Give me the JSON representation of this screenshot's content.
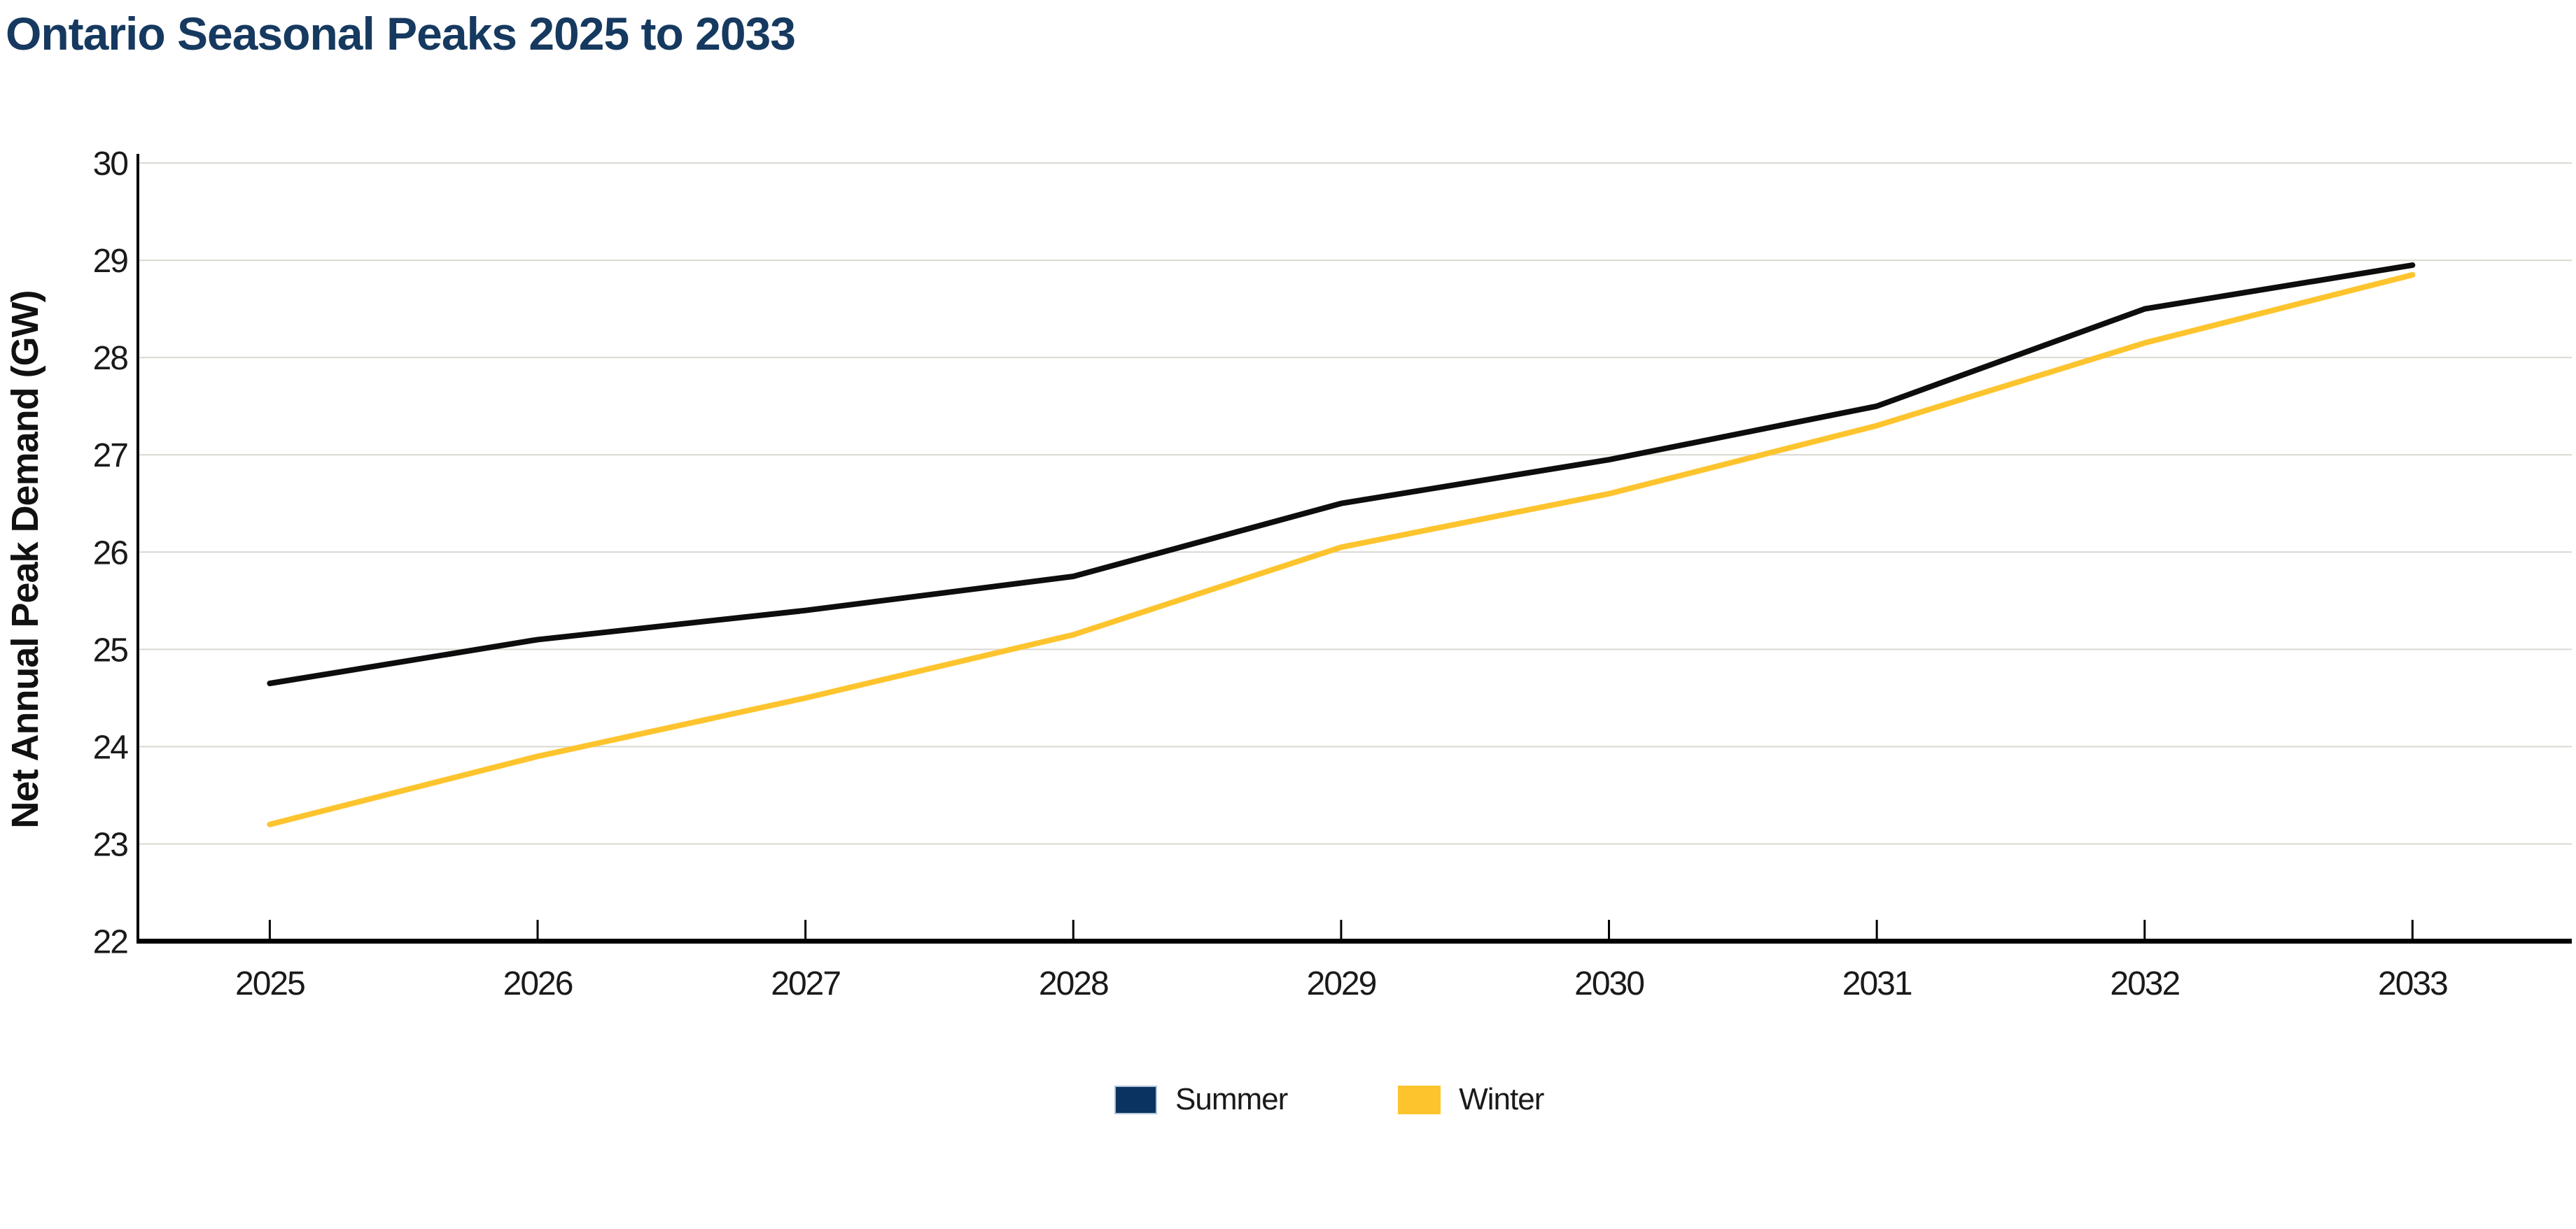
{
  "colors": {
    "title": "#16395F",
    "background": "#FFFFFF"
  },
  "chart_data": {
    "type": "line",
    "title": "Ontario Seasonal Peaks 2025 to 2033",
    "ylabel": "Net Annual Peak Demand (GW)",
    "x": [
      2025,
      2026,
      2027,
      2028,
      2029,
      2030,
      2031,
      2032,
      2033
    ],
    "ylim": [
      22,
      30
    ],
    "ytick_step": 1,
    "grid": "horizontal-gridlines",
    "legend_position": "bottom-center",
    "axis_color": "#000000",
    "gridline_color": "#D9D8D1",
    "tick_label_color": "#1A1A1A",
    "series": [
      {
        "name": "Summer",
        "line_color": "#0D0D0D",
        "swatch_color": "#0A3361",
        "swatch_border": "#B3C4D6",
        "values": [
          24.65,
          25.1,
          25.4,
          25.75,
          26.5,
          26.95,
          27.5,
          28.5,
          28.95
        ]
      },
      {
        "name": "Winter",
        "line_color": "#FDC42E",
        "swatch_color": "#FDC42E",
        "swatch_border": "#FDC42E",
        "values": [
          23.2,
          23.9,
          24.5,
          25.15,
          26.05,
          26.6,
          27.3,
          28.15,
          28.85
        ]
      }
    ]
  }
}
